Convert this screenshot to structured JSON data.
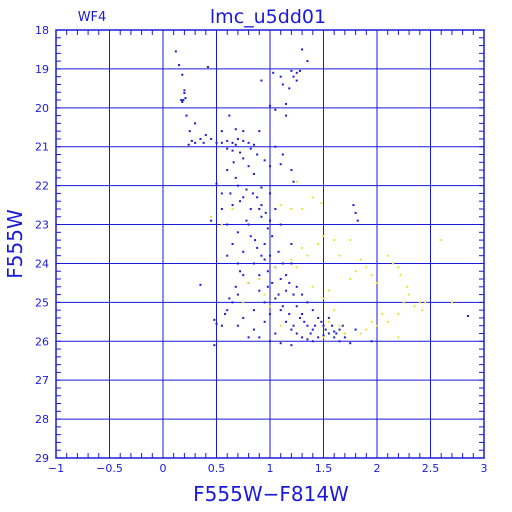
{
  "chart_data": {
    "type": "scatter",
    "title": "lmc_u5dd01",
    "subtitle": "WF4",
    "xlabel": "F555W−F814W",
    "ylabel": "F555W",
    "xlim": [
      -1,
      3
    ],
    "ylim": [
      29,
      18
    ],
    "y_inverted": true,
    "grid": true,
    "x_ticks": [
      -1,
      -0.5,
      0,
      0.5,
      1,
      1.5,
      2,
      2.5,
      3
    ],
    "x_tick_labels": [
      "−1",
      "−0.5",
      "0",
      "0.5",
      "1",
      "1.5",
      "2",
      "2.5",
      "3"
    ],
    "y_ticks": [
      18,
      19,
      20,
      21,
      22,
      23,
      24,
      25,
      26,
      27,
      28,
      29
    ],
    "y_tick_labels": [
      "18",
      "19",
      "20",
      "21",
      "22",
      "23",
      "24",
      "25",
      "26",
      "27",
      "28",
      "29"
    ],
    "series": [
      {
        "color": "#1a1adc",
        "points": [
          [
            0.12,
            18.55
          ],
          [
            0.15,
            18.9
          ],
          [
            0.18,
            19.15
          ],
          [
            0.42,
            18.95
          ],
          [
            0.2,
            19.55
          ],
          [
            0.17,
            19.8
          ],
          [
            0.19,
            19.8
          ],
          [
            0.21,
            19.75
          ],
          [
            0.18,
            19.85
          ],
          [
            0.2,
            19.62
          ],
          [
            0.3,
            20.4
          ],
          [
            0.22,
            20.2
          ],
          [
            0.25,
            20.6
          ],
          [
            0.24,
            20.95
          ],
          [
            0.27,
            20.85
          ],
          [
            0.3,
            20.9
          ],
          [
            0.35,
            20.8
          ],
          [
            0.38,
            20.9
          ],
          [
            0.4,
            20.7
          ],
          [
            0.45,
            20.8
          ],
          [
            0.5,
            20.9
          ],
          [
            0.55,
            20.9
          ],
          [
            0.6,
            20.85
          ],
          [
            0.65,
            20.9
          ],
          [
            0.7,
            20.8
          ],
          [
            0.75,
            20.85
          ],
          [
            0.8,
            20.9
          ],
          [
            0.85,
            20.95
          ],
          [
            0.6,
            21.05
          ],
          [
            0.65,
            21.1
          ],
          [
            0.68,
            20.95
          ],
          [
            0.72,
            21.15
          ],
          [
            0.82,
            21.05
          ],
          [
            0.88,
            21.2
          ],
          [
            0.95,
            21.35
          ],
          [
            1.0,
            21.5
          ],
          [
            0.9,
            20.6
          ],
          [
            0.75,
            20.6
          ],
          [
            0.68,
            20.55
          ],
          [
            0.55,
            20.6
          ],
          [
            1.05,
            21.0
          ],
          [
            1.12,
            21.2
          ],
          [
            1.1,
            21.45
          ],
          [
            1.2,
            21.6
          ],
          [
            1.22,
            21.9
          ],
          [
            0.62,
            20.2
          ],
          [
            0.92,
            19.3
          ],
          [
            1.2,
            19.05
          ],
          [
            1.22,
            19.2
          ],
          [
            1.25,
            19.3
          ],
          [
            1.28,
            19.05
          ],
          [
            1.18,
            19.5
          ],
          [
            1.15,
            19.9
          ],
          [
            1.15,
            20.2
          ],
          [
            1.0,
            19.95
          ],
          [
            1.05,
            20.05
          ],
          [
            1.03,
            19.1
          ],
          [
            1.12,
            19.4
          ],
          [
            1.25,
            19.1
          ],
          [
            1.1,
            19.2
          ],
          [
            1.3,
            18.5
          ],
          [
            1.35,
            18.8
          ],
          [
            0.45,
            22.9
          ],
          [
            0.55,
            22.6
          ],
          [
            0.6,
            23.0
          ],
          [
            0.65,
            22.5
          ],
          [
            0.63,
            22.2
          ],
          [
            0.7,
            22.0
          ],
          [
            0.72,
            22.4
          ],
          [
            0.55,
            22.2
          ],
          [
            0.5,
            21.95
          ],
          [
            0.85,
            21.7
          ],
          [
            0.92,
            22.05
          ],
          [
            1.0,
            22.2
          ],
          [
            0.92,
            22.8
          ],
          [
            0.98,
            23.1
          ],
          [
            0.82,
            23.3
          ],
          [
            0.88,
            23.6
          ],
          [
            0.95,
            23.9
          ],
          [
            0.9,
            24.3
          ],
          [
            0.98,
            24.6
          ],
          [
            1.05,
            24.9
          ],
          [
            1.1,
            25.2
          ],
          [
            1.15,
            25.5
          ],
          [
            1.2,
            25.7
          ],
          [
            1.25,
            25.8
          ],
          [
            1.3,
            25.9
          ],
          [
            1.35,
            25.95
          ],
          [
            1.4,
            26.0
          ],
          [
            1.45,
            25.9
          ],
          [
            1.5,
            25.85
          ],
          [
            1.55,
            25.8
          ],
          [
            1.6,
            25.75
          ],
          [
            1.65,
            25.7
          ],
          [
            1.7,
            25.9
          ],
          [
            1.75,
            26.05
          ],
          [
            1.8,
            25.7
          ],
          [
            1.78,
            22.5
          ],
          [
            1.8,
            22.7
          ],
          [
            1.82,
            22.9
          ],
          [
            0.35,
            24.55
          ],
          [
            0.48,
            25.45
          ],
          [
            0.5,
            25.55
          ],
          [
            0.55,
            25.6
          ],
          [
            0.48,
            26.1
          ],
          [
            2.85,
            25.35
          ],
          [
            1.95,
            26.0
          ],
          [
            0.7,
            24.0
          ],
          [
            0.75,
            24.3
          ],
          [
            0.8,
            24.5
          ],
          [
            0.7,
            24.8
          ],
          [
            0.65,
            25.0
          ],
          [
            0.6,
            25.2
          ],
          [
            0.75,
            25.4
          ],
          [
            0.85,
            25.2
          ],
          [
            0.95,
            25.5
          ],
          [
            1.05,
            25.8
          ],
          [
            1.0,
            26.0
          ],
          [
            0.9,
            25.9
          ],
          [
            0.85,
            25.7
          ],
          [
            1.2,
            24.0
          ],
          [
            1.15,
            24.3
          ],
          [
            1.25,
            24.6
          ],
          [
            1.3,
            24.8
          ],
          [
            1.35,
            25.0
          ],
          [
            1.4,
            25.2
          ],
          [
            1.45,
            25.4
          ],
          [
            1.5,
            25.6
          ],
          [
            1.55,
            25.4
          ],
          [
            1.2,
            23.5
          ],
          [
            1.1,
            23.0
          ],
          [
            1.05,
            22.6
          ],
          [
            0.6,
            23.8
          ],
          [
            0.65,
            23.5
          ],
          [
            0.7,
            23.2
          ],
          [
            0.78,
            22.9
          ],
          [
            0.82,
            22.6
          ],
          [
            0.75,
            22.3
          ],
          [
            0.68,
            21.8
          ],
          [
            0.6,
            21.6
          ],
          [
            0.66,
            21.4
          ],
          [
            0.75,
            21.3
          ],
          [
            0.8,
            21.5
          ],
          [
            0.95,
            23.5
          ],
          [
            1.0,
            23.8
          ],
          [
            1.05,
            24.1
          ],
          [
            1.1,
            24.4
          ],
          [
            1.15,
            24.7
          ],
          [
            1.25,
            25.1
          ],
          [
            1.3,
            25.3
          ],
          [
            1.35,
            25.6
          ],
          [
            1.4,
            25.7
          ],
          [
            1.6,
            25.9
          ],
          [
            1.65,
            26.0
          ],
          [
            1.7,
            25.8
          ],
          [
            0.85,
            24.0
          ],
          [
            0.9,
            24.7
          ],
          [
            0.95,
            25.0
          ],
          [
            1.0,
            25.3
          ],
          [
            0.8,
            23.0
          ],
          [
            0.75,
            23.7
          ],
          [
            0.72,
            24.2
          ],
          [
            0.68,
            24.6
          ],
          [
            0.62,
            24.9
          ],
          [
            0.58,
            25.3
          ],
          [
            0.7,
            25.6
          ],
          [
            0.8,
            25.9
          ],
          [
            1.1,
            26.05
          ],
          [
            1.2,
            26.1
          ],
          [
            0.88,
            22.3
          ],
          [
            0.92,
            22.5
          ],
          [
            1.0,
            22.9
          ],
          [
            1.02,
            23.3
          ],
          [
            1.08,
            23.7
          ],
          [
            1.12,
            24.0
          ],
          [
            1.18,
            24.5
          ],
          [
            1.22,
            24.8
          ],
          [
            1.28,
            25.4
          ],
          [
            1.32,
            25.5
          ],
          [
            1.38,
            25.8
          ],
          [
            1.42,
            25.6
          ],
          [
            1.48,
            25.5
          ],
          [
            1.52,
            25.7
          ],
          [
            1.58,
            25.6
          ],
          [
            1.62,
            25.8
          ],
          [
            1.68,
            25.6
          ],
          [
            0.78,
            22.1
          ],
          [
            0.84,
            22.2
          ],
          [
            0.9,
            22.6
          ],
          [
            0.96,
            22.7
          ],
          [
            0.86,
            23.4
          ],
          [
            0.92,
            23.8
          ],
          [
            0.98,
            24.2
          ],
          [
            1.02,
            24.5
          ],
          [
            1.08,
            24.8
          ],
          [
            1.12,
            25.1
          ],
          [
            1.18,
            25.3
          ],
          [
            1.22,
            25.6
          ]
        ]
      },
      {
        "color": "#f0e030",
        "points": [
          [
            0.55,
            23.0
          ],
          [
            0.45,
            22.8
          ],
          [
            0.65,
            22.6
          ],
          [
            1.25,
            21.9
          ],
          [
            1.1,
            22.5
          ],
          [
            1.2,
            22.6
          ],
          [
            1.3,
            22.6
          ],
          [
            1.4,
            22.3
          ],
          [
            1.48,
            22.45
          ],
          [
            1.5,
            23.3
          ],
          [
            1.45,
            23.5
          ],
          [
            1.6,
            23.4
          ],
          [
            1.3,
            23.6
          ],
          [
            1.35,
            23.8
          ],
          [
            1.2,
            23.9
          ],
          [
            1.25,
            24.1
          ],
          [
            1.4,
            24.6
          ],
          [
            1.5,
            24.9
          ],
          [
            1.55,
            24.7
          ],
          [
            1.6,
            25.2
          ],
          [
            1.65,
            25.6
          ],
          [
            1.7,
            25.8
          ],
          [
            1.75,
            24.4
          ],
          [
            1.8,
            24.2
          ],
          [
            1.75,
            23.4
          ],
          [
            1.85,
            23.9
          ],
          [
            1.9,
            24.1
          ],
          [
            1.95,
            24.3
          ],
          [
            2.0,
            24.5
          ],
          [
            2.1,
            23.8
          ],
          [
            2.15,
            24.0
          ],
          [
            2.2,
            24.1
          ],
          [
            2.22,
            24.3
          ],
          [
            2.28,
            24.6
          ],
          [
            2.3,
            24.8
          ],
          [
            2.25,
            25.0
          ],
          [
            2.35,
            25.1
          ],
          [
            2.4,
            25.0
          ],
          [
            2.42,
            25.2
          ],
          [
            2.2,
            25.3
          ],
          [
            2.1,
            25.5
          ],
          [
            2.05,
            25.3
          ],
          [
            1.95,
            25.5
          ],
          [
            1.9,
            25.7
          ],
          [
            1.85,
            25.8
          ],
          [
            2.0,
            25.6
          ],
          [
            2.2,
            25.9
          ],
          [
            2.6,
            23.4
          ],
          [
            2.7,
            25.0
          ],
          [
            1.5,
            25.9
          ],
          [
            1.55,
            25.5
          ],
          [
            1.05,
            24.1
          ],
          [
            0.95,
            24.8
          ],
          [
            1.1,
            25.6
          ],
          [
            0.8,
            24.5
          ],
          [
            0.9,
            24.4
          ],
          [
            1.0,
            25.1
          ],
          [
            0.75,
            25.0
          ],
          [
            2.45,
            25.0
          ],
          [
            1.65,
            23.8
          ]
        ]
      }
    ]
  }
}
